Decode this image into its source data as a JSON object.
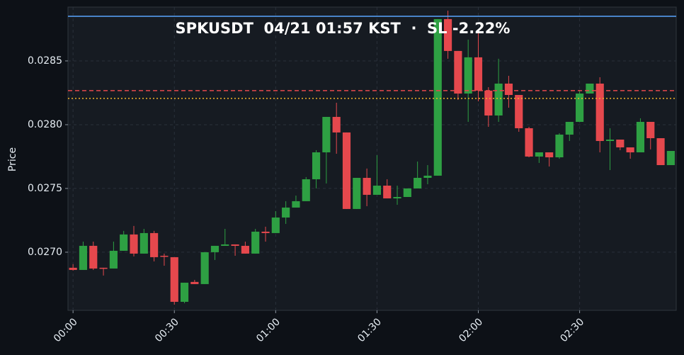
{
  "chart_data": {
    "type": "candlestick",
    "title": "SPKUSDT  04/21 01:57 KST  ·  SL -2.22%",
    "ylabel": "Price",
    "x": [
      0,
      3,
      6,
      9,
      12,
      15,
      18,
      21,
      24,
      27,
      30,
      33,
      36,
      39,
      42,
      45,
      48,
      51,
      54,
      57,
      60,
      63,
      66,
      69,
      72,
      75,
      78,
      81,
      84,
      87,
      90,
      93,
      96,
      99,
      102,
      105,
      108,
      111,
      114,
      117,
      120,
      123,
      126,
      129,
      132,
      135,
      138,
      141,
      144,
      147,
      150,
      153,
      156,
      159,
      162,
      165,
      168,
      171,
      174,
      177
    ],
    "open": [
      0.026878,
      0.026861,
      0.02705,
      0.026878,
      0.026872,
      0.027011,
      0.027139,
      0.026989,
      0.02715,
      0.026972,
      0.026961,
      0.026611,
      0.026767,
      0.02675,
      0.027,
      0.02705,
      0.027061,
      0.02705,
      0.026989,
      0.027161,
      0.02715,
      0.027272,
      0.02735,
      0.0274,
      0.027572,
      0.027783,
      0.028061,
      0.027939,
      0.027339,
      0.027583,
      0.02745,
      0.027522,
      0.027422,
      0.027433,
      0.0275,
      0.027583,
      0.0276,
      0.028828,
      0.028578,
      0.028244,
      0.028528,
      0.028267,
      0.028072,
      0.028322,
      0.028233,
      0.027972,
      0.02775,
      0.027783,
      0.027744,
      0.027922,
      0.028022,
      0.028244,
      0.028322,
      0.027872,
      0.027883,
      0.027822,
      0.027783,
      0.028022,
      0.027894,
      0.027683
    ],
    "high": [
      0.026906,
      0.027083,
      0.027083,
      0.026878,
      0.027083,
      0.027167,
      0.027206,
      0.027183,
      0.027167,
      0.026989,
      0.026961,
      0.026761,
      0.026783,
      0.027,
      0.02705,
      0.027183,
      0.027061,
      0.027083,
      0.027183,
      0.0272,
      0.027322,
      0.0274,
      0.027444,
      0.027589,
      0.0278,
      0.028061,
      0.028172,
      0.027939,
      0.027583,
      0.027656,
      0.027761,
      0.027572,
      0.027522,
      0.0275,
      0.027711,
      0.027683,
      0.028828,
      0.028894,
      0.028578,
      0.028667,
      0.028728,
      0.028294,
      0.028517,
      0.028383,
      0.028233,
      0.027983,
      0.027783,
      0.027783,
      0.027933,
      0.028022,
      0.028272,
      0.028322,
      0.028372,
      0.027972,
      0.027883,
      0.027822,
      0.02805,
      0.028022,
      0.027894,
      0.027794
    ],
    "low": [
      0.026856,
      0.026861,
      0.026861,
      0.026817,
      0.026872,
      0.027011,
      0.026967,
      0.026989,
      0.026928,
      0.026894,
      0.026589,
      0.0266,
      0.02675,
      0.02675,
      0.026939,
      0.02705,
      0.026972,
      0.026989,
      0.026989,
      0.027083,
      0.02715,
      0.027222,
      0.02735,
      0.0274,
      0.0275,
      0.027539,
      0.027772,
      0.027339,
      0.027339,
      0.027361,
      0.02745,
      0.027422,
      0.027372,
      0.027433,
      0.0275,
      0.027533,
      0.0276,
      0.028517,
      0.028194,
      0.028022,
      0.028183,
      0.027983,
      0.028022,
      0.028133,
      0.027944,
      0.027744,
      0.0277,
      0.027672,
      0.027733,
      0.027872,
      0.028022,
      0.028244,
      0.027783,
      0.027644,
      0.0278,
      0.027733,
      0.027783,
      0.027806,
      0.027683,
      0.027683
    ],
    "close": [
      0.026861,
      0.02705,
      0.026872,
      0.026872,
      0.027011,
      0.027139,
      0.026989,
      0.02715,
      0.026961,
      0.026967,
      0.026611,
      0.026761,
      0.02675,
      0.027,
      0.02705,
      0.027061,
      0.02705,
      0.026989,
      0.027161,
      0.02715,
      0.027272,
      0.02735,
      0.0274,
      0.027572,
      0.027783,
      0.028061,
      0.027939,
      0.027339,
      0.027583,
      0.02745,
      0.027522,
      0.027422,
      0.027433,
      0.0275,
      0.027583,
      0.0276,
      0.028828,
      0.028578,
      0.028244,
      0.028528,
      0.028267,
      0.028072,
      0.028322,
      0.028233,
      0.027972,
      0.02775,
      0.027783,
      0.027744,
      0.027922,
      0.028022,
      0.028244,
      0.028322,
      0.027872,
      0.027883,
      0.027822,
      0.027783,
      0.028022,
      0.027894,
      0.027683,
      0.027794
    ],
    "up_color": "#2ea043",
    "down_color": "#e5484d",
    "levels": [
      {
        "value": 0.02885,
        "color": "#58a6ff",
        "style": "solid"
      },
      {
        "value": 0.028267,
        "color": "#e5484d",
        "style": "dashed"
      },
      {
        "value": 0.028206,
        "color": "#f0b429",
        "style": "dotted"
      }
    ],
    "xlim": [
      -1.5,
      178.6
    ],
    "ylim": [
      0.026544,
      0.028922
    ],
    "xticks": [
      {
        "value": 0,
        "label": "00:00"
      },
      {
        "value": 30,
        "label": "00:30"
      },
      {
        "value": 60,
        "label": "01:00"
      },
      {
        "value": 90,
        "label": "01:30"
      },
      {
        "value": 120,
        "label": "02:00"
      },
      {
        "value": 150,
        "label": "02:30"
      }
    ],
    "yticks": [
      {
        "value": 0.027,
        "label": "0.0270"
      },
      {
        "value": 0.0275,
        "label": "0.0275"
      },
      {
        "value": 0.028,
        "label": "0.0280"
      },
      {
        "value": 0.0285,
        "label": "0.0285"
      }
    ],
    "grid": true
  }
}
